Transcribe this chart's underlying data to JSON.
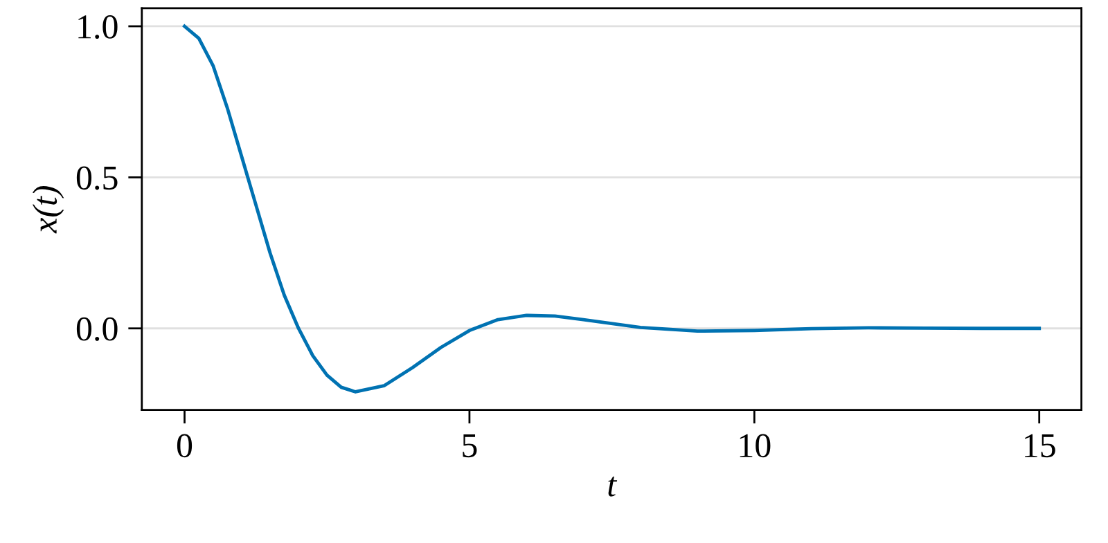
{
  "chart_data": {
    "type": "line",
    "xlabel": "t",
    "ylabel": "x(t)",
    "xlim": [
      -0.75,
      15.74
    ],
    "ylim": [
      -0.27,
      1.06
    ],
    "xticks": [
      0,
      5,
      10,
      15
    ],
    "yticks": [
      {
        "value": 0,
        "label": "0.0"
      },
      {
        "value": 0.5,
        "label": "0.5"
      },
      {
        "value": 1,
        "label": "1.0"
      }
    ],
    "grid": "y",
    "marker": "none",
    "line_style": "solid",
    "series": [
      {
        "color": "#0072b2",
        "x": [
          0,
          0.25,
          0.5,
          0.75,
          1,
          1.25,
          1.5,
          1.75,
          2,
          2.25,
          2.5,
          2.75,
          3,
          3.5,
          4,
          4.5,
          5,
          5.5,
          6,
          6.5,
          7,
          8,
          9,
          10,
          11,
          12,
          13,
          14,
          15
        ],
        "values": [
          1.0,
          0.96,
          0.87,
          0.73,
          0.57,
          0.41,
          0.25,
          0.11,
          0.0,
          -0.09,
          -0.155,
          -0.195,
          -0.21,
          -0.19,
          -0.13,
          -0.063,
          -0.007,
          0.029,
          0.043,
          0.041,
          0.029,
          0.003,
          -0.009,
          -0.007,
          -0.001,
          0.002,
          0.001,
          0.0,
          0.0
        ]
      }
    ]
  }
}
